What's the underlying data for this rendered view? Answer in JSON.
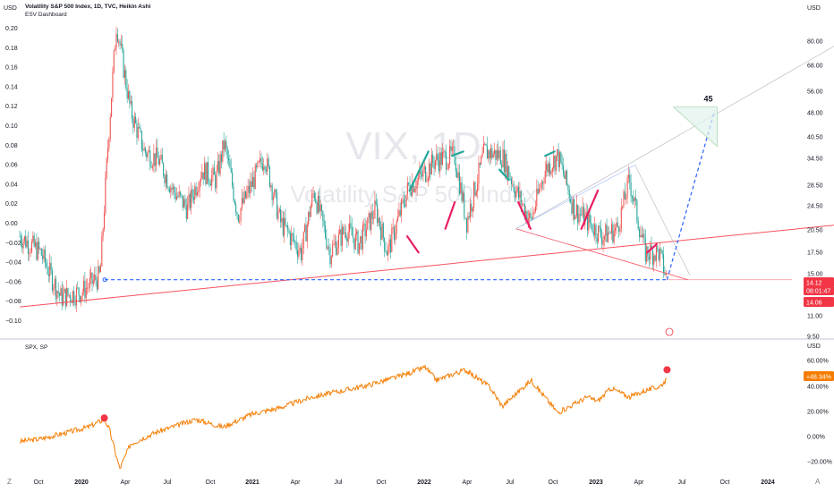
{
  "header": {
    "title": "Volatility S&P 500 Index, 1D, TVC, Heikin Ashi",
    "indicator": "ESV Dashboard",
    "lower_title": "SPX, SP",
    "units": "USD",
    "left_units": "USD",
    "corner_left": "Z",
    "corner_right": "A"
  },
  "watermark": {
    "symbol": "VIX, 1D",
    "name": "Volatility S&P 500 Index"
  },
  "colors": {
    "up": "#26a69a",
    "down": "#ef5350",
    "trend": "#f7525f",
    "projection": "#2962ff",
    "spx_line": "#f57c00",
    "marker": "#f23645",
    "box_fill": "#e0f2ec",
    "box_stroke": "#a5d6a7",
    "hl_green": "#26a69a",
    "hl_red": "#e91e63"
  },
  "chart_data": [
    {
      "type": "line",
      "title": "Volatility S&P 500 Index, 1D, TVC, Heikin Ashi",
      "ylabel": "USD",
      "scale": "log",
      "ylim": [
        9.5,
        95
      ],
      "right_ticks": [
        "80.00",
        "68.00",
        "56.00",
        "48.00",
        "40.50",
        "34.50",
        "28.50",
        "24.50",
        "20.50",
        "17.50",
        "15.00",
        "11.00",
        "9.50"
      ],
      "left_indicator_ticks": [
        "0.20",
        "0.18",
        "0.16",
        "0.14",
        "0.12",
        "0.10",
        "0.08",
        "0.06",
        "0.04",
        "0.02",
        "0.00",
        "−0.02",
        "−0.04",
        "−0.06",
        "−0.08",
        "−0.10"
      ],
      "x_ticks": [
        "Oct",
        "2020",
        "Apr",
        "Jul",
        "Oct",
        "2021",
        "Apr",
        "Jul",
        "Oct",
        "2022",
        "Apr",
        "Jul",
        "Oct",
        "2023",
        "Apr",
        "Jul",
        "Oct",
        "2024"
      ],
      "series": [
        {
          "name": "VIX",
          "x": [
            "2019-08-15",
            "2019-10-01",
            "2019-11-15",
            "2020-01-02",
            "2020-02-10",
            "2020-02-27",
            "2020-03-16",
            "2020-04-15",
            "2020-05-15",
            "2020-06-15",
            "2020-07-15",
            "2020-08-15",
            "2020-09-15",
            "2020-10-15",
            "2020-11-02",
            "2020-12-01",
            "2021-01-27",
            "2021-03-01",
            "2021-04-15",
            "2021-05-12",
            "2021-06-15",
            "2021-07-19",
            "2021-08-15",
            "2021-09-20",
            "2021-10-15",
            "2021-11-30",
            "2021-12-20",
            "2022-01-24",
            "2022-03-07",
            "2022-04-01",
            "2022-05-09",
            "2022-06-16",
            "2022-07-15",
            "2022-08-15",
            "2022-09-15",
            "2022-10-12",
            "2022-11-15",
            "2022-12-15",
            "2023-01-15",
            "2023-02-15",
            "2023-03-13",
            "2023-04-15",
            "2023-05-15",
            "2023-06-01"
          ],
          "values": [
            19,
            17,
            12.5,
            13,
            14.5,
            36,
            82,
            45,
            34,
            32,
            26,
            23,
            30,
            28,
            36,
            22,
            33,
            21,
            17,
            26,
            17,
            20,
            18,
            23,
            17,
            27,
            28,
            32,
            33,
            21,
            34,
            33,
            26,
            21,
            30,
            33,
            23,
            21,
            19,
            20,
            28,
            17,
            17,
            14.1
          ]
        },
        {
          "name": "Projection",
          "x": [
            "2023-06-01",
            "2023-09-10"
          ],
          "values": [
            14.1,
            45
          ]
        }
      ],
      "annotations": [
        {
          "text": "45",
          "x": "2023-09-10",
          "y": 45
        },
        {
          "text": "14.12",
          "type": "price-label"
        },
        {
          "text": "08:01:47",
          "type": "countdown"
        },
        {
          "text": "14.06",
          "type": "price-label"
        }
      ],
      "grid": false,
      "legend": "none"
    },
    {
      "type": "line",
      "title": "SPX, SP",
      "ylabel": "USD",
      "right_ticks": [
        "60.00%",
        "40.00%",
        "20.00%",
        "0.00%",
        "−20.00%"
      ],
      "ylim": [
        -22,
        72
      ],
      "series": [
        {
          "name": "SPX",
          "x": [
            "2019-08-15",
            "2019-10-01",
            "2019-12-01",
            "2020-01-15",
            "2020-02-19",
            "2020-03-01",
            "2020-03-23",
            "2020-04-15",
            "2020-06-08",
            "2020-09-02",
            "2020-10-30",
            "2020-12-31",
            "2021-03-01",
            "2021-05-07",
            "2021-09-02",
            "2021-11-18",
            "2022-01-03",
            "2022-01-27",
            "2022-03-29",
            "2022-05-20",
            "2022-06-16",
            "2022-08-16",
            "2022-10-12",
            "2022-12-13",
            "2023-01-05",
            "2023-02-02",
            "2023-03-13",
            "2023-04-15",
            "2023-05-15",
            "2023-06-01"
          ],
          "values": [
            1,
            3,
            8,
            12,
            18,
            10,
            -20,
            -1,
            8,
            18,
            12,
            22,
            27,
            35,
            44,
            52,
            58,
            48,
            56,
            43,
            28,
            48,
            23,
            35,
            32,
            42,
            35,
            40,
            43,
            48.34
          ]
        }
      ],
      "annotations": [
        {
          "text": "+48.34%",
          "type": "price-label"
        }
      ]
    }
  ]
}
